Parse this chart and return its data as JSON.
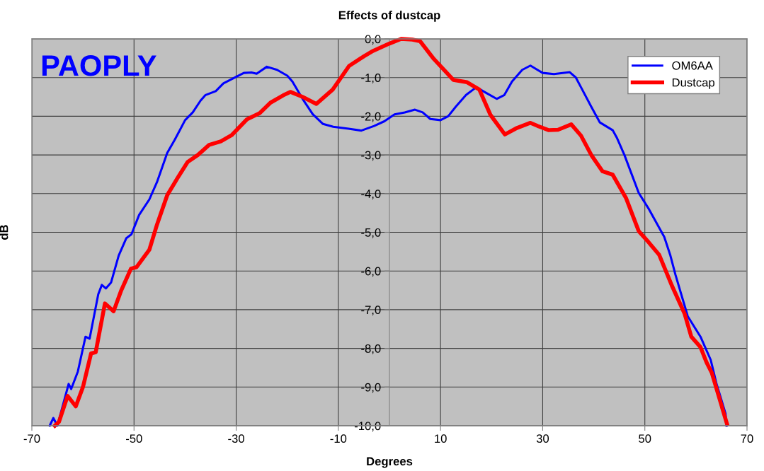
{
  "chart_data": {
    "type": "line",
    "title": "Effects of dustcap",
    "xlabel": "Degrees",
    "ylabel": "dB",
    "annotations": [
      "PAOPLY"
    ],
    "xlim": [
      -70,
      70
    ],
    "xticks": [
      -70,
      -50,
      -30,
      -10,
      10,
      30,
      50,
      70
    ],
    "ylim": [
      -10,
      0
    ],
    "yticks": [
      {
        "value": 0,
        "label": "0,0"
      },
      {
        "value": -1,
        "label": "-1,0"
      },
      {
        "value": -2,
        "label": "-2,0"
      },
      {
        "value": -3,
        "label": "-3,0"
      },
      {
        "value": -4,
        "label": "-4,0"
      },
      {
        "value": -5,
        "label": "-5,0"
      },
      {
        "value": -6,
        "label": "-6,0"
      },
      {
        "value": -7,
        "label": "-7,0"
      },
      {
        "value": -8,
        "label": "-8,0"
      },
      {
        "value": -9,
        "label": "-9,0"
      },
      {
        "value": -10,
        "label": "-10,0"
      }
    ],
    "grid": true,
    "legend": "top right",
    "marker": "none",
    "line_style": "solid",
    "series": [
      {
        "name": "OM6AA",
        "color": "#0000ff",
        "x": [
          -66.5,
          -65.8,
          -65,
          -62.8,
          -62.3,
          -61,
          -59.5,
          -58.7,
          -57,
          -56.3,
          -55.5,
          -54.5,
          -53,
          -51.5,
          -50.5,
          -49,
          -47,
          -45.5,
          -43.5,
          -42,
          -40,
          -38.5,
          -37,
          -36,
          -35,
          -34,
          -32.5,
          -30,
          -28.5,
          -27,
          -26,
          -24,
          -22,
          -20,
          -19,
          -17,
          -15,
          -13,
          -11,
          -8,
          -5.5,
          -3,
          -1,
          1,
          3,
          5,
          6.5,
          8,
          10,
          11.5,
          13,
          15,
          17,
          19,
          21,
          22.5,
          24,
          26,
          27.6,
          30,
          32.2,
          35.3,
          36.5,
          37.5,
          39.5,
          41.2,
          43.7,
          44.5,
          46,
          48.8,
          50.7,
          53.8,
          55,
          56,
          58.4,
          60.9,
          62.9,
          64,
          65.8,
          66
        ],
        "values": [
          -10,
          -9.8,
          -10,
          -8.92,
          -9.05,
          -8.6,
          -7.7,
          -7.75,
          -6.6,
          -6.36,
          -6.45,
          -6.3,
          -5.6,
          -5.15,
          -5.05,
          -4.55,
          -4.15,
          -3.7,
          -2.95,
          -2.6,
          -2.1,
          -1.9,
          -1.6,
          -1.45,
          -1.4,
          -1.35,
          -1.15,
          -0.98,
          -0.88,
          -0.87,
          -0.9,
          -0.72,
          -0.8,
          -0.95,
          -1.1,
          -1.55,
          -1.95,
          -2.2,
          -2.27,
          -2.32,
          -2.37,
          -2.25,
          -2.13,
          -1.95,
          -1.9,
          -1.83,
          -1.9,
          -2.07,
          -2.1,
          -2.0,
          -1.75,
          -1.45,
          -1.25,
          -1.4,
          -1.55,
          -1.45,
          -1.1,
          -0.8,
          -0.69,
          -0.88,
          -0.91,
          -0.86,
          -1.0,
          -1.25,
          -1.75,
          -2.16,
          -2.36,
          -2.55,
          -3.0,
          -3.98,
          -4.38,
          -5.12,
          -5.6,
          -6.1,
          -7.17,
          -7.7,
          -8.3,
          -8.9,
          -9.69,
          -10
        ]
      },
      {
        "name": "Dustcap",
        "color": "#ff0000",
        "x": [
          -65.5,
          -64.7,
          -63,
          -61.4,
          -60,
          -58.4,
          -57.5,
          -55.7,
          -54,
          -52.5,
          -50.6,
          -49.5,
          -47,
          -45.5,
          -43.5,
          -41.5,
          -39.5,
          -37.5,
          -35.3,
          -33,
          -30.9,
          -27.9,
          -25.4,
          -23.3,
          -20.8,
          -19.4,
          -17,
          -14.3,
          -11.1,
          -7.9,
          -5,
          -3.2,
          0,
          2.3,
          4.5,
          6,
          8.7,
          12.5,
          15.2,
          17.6,
          19.8,
          22.6,
          25,
          27.6,
          29,
          31.2,
          33,
          35.6,
          37.5,
          39.6,
          41.7,
          43.7,
          46.3,
          48.8,
          50.7,
          52.8,
          55.3,
          57.8,
          59.1,
          60.9,
          62.1,
          63.1,
          64.9,
          66.1
        ],
        "values": [
          -10,
          -9.9,
          -9.23,
          -9.5,
          -9.0,
          -8.13,
          -8.1,
          -6.84,
          -7.04,
          -6.5,
          -5.94,
          -5.9,
          -5.45,
          -4.8,
          -4.04,
          -3.6,
          -3.18,
          -3.0,
          -2.74,
          -2.65,
          -2.49,
          -2.08,
          -1.92,
          -1.65,
          -1.46,
          -1.37,
          -1.5,
          -1.68,
          -1.31,
          -0.7,
          -0.45,
          -0.31,
          -0.12,
          0,
          -0.02,
          -0.06,
          -0.52,
          -1.06,
          -1.12,
          -1.31,
          -1.97,
          -2.47,
          -2.3,
          -2.17,
          -2.25,
          -2.36,
          -2.35,
          -2.21,
          -2.5,
          -3.02,
          -3.42,
          -3.51,
          -4.11,
          -4.97,
          -5.25,
          -5.58,
          -6.38,
          -7.11,
          -7.7,
          -7.97,
          -8.37,
          -8.63,
          -9.43,
          -9.96
        ]
      }
    ]
  }
}
